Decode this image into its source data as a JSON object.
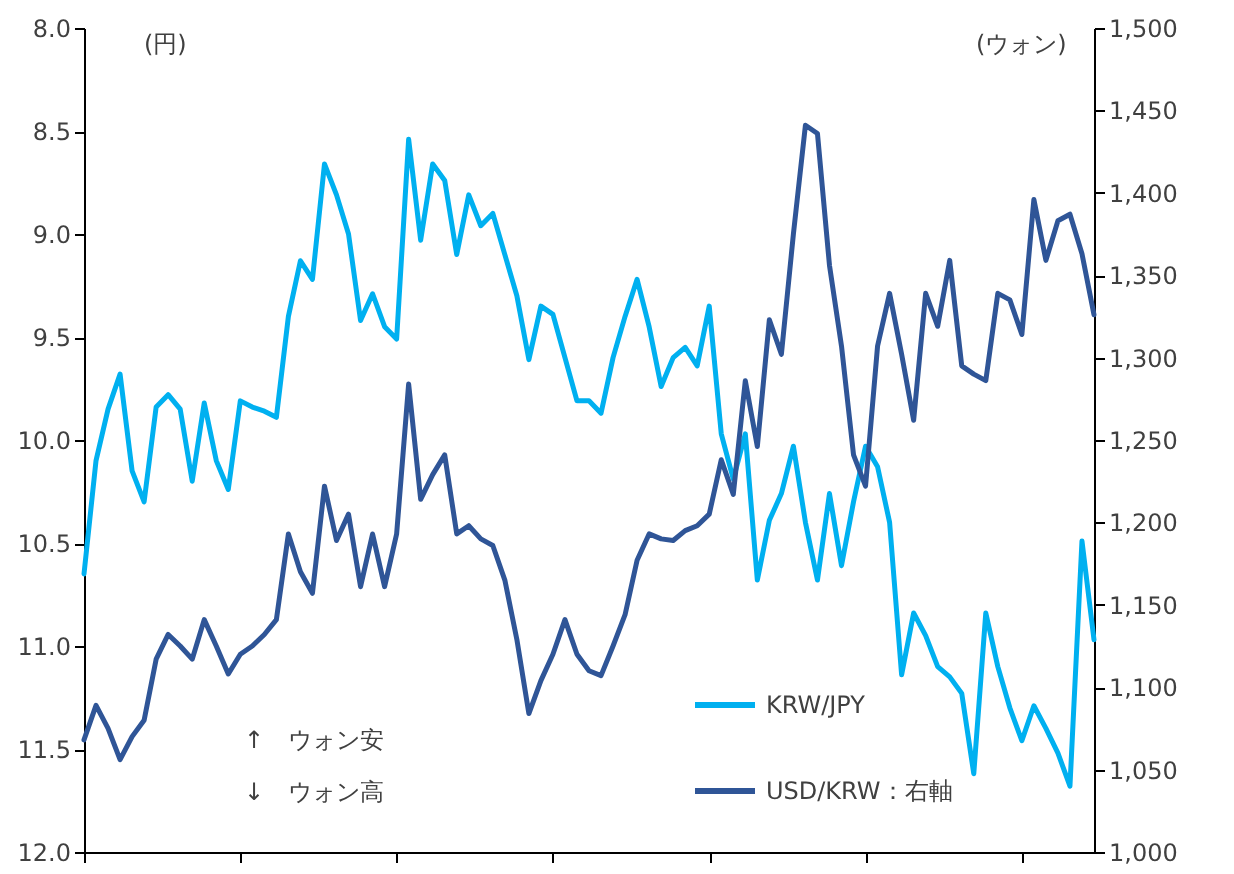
{
  "chart_data": {
    "type": "line",
    "annotations": [
      "(円)",
      "(ウォン)",
      "↑　ウォン安",
      "↓　ウォン高"
    ],
    "categories": [
      null,
      null,
      null,
      null,
      null,
      null,
      null,
      null,
      null,
      null,
      null,
      null,
      null,
      null,
      null,
      null,
      null,
      null,
      null,
      null,
      null,
      null,
      null,
      null,
      null,
      null,
      null,
      null,
      null,
      null,
      null,
      null,
      null,
      null,
      null,
      null,
      null,
      null,
      null,
      null,
      null,
      null,
      null,
      null,
      null,
      null,
      null,
      null,
      null,
      null,
      null,
      null,
      null,
      null,
      null,
      null,
      null,
      null,
      null,
      null,
      null,
      null,
      null,
      null,
      null,
      null,
      null,
      null,
      null,
      null,
      null,
      null,
      null,
      null,
      null,
      null,
      null,
      null,
      null,
      null,
      null,
      null,
      null,
      null,
      null
    ],
    "series": [
      {
        "name": "KRW/JPY",
        "color": "#00b0f0",
        "values": [
          10.65,
          10.1,
          9.85,
          9.68,
          10.15,
          10.3,
          9.84,
          9.78,
          9.85,
          10.2,
          9.82,
          10.1,
          10.24,
          9.81,
          9.84,
          9.86,
          9.89,
          9.4,
          9.13,
          9.22,
          8.66,
          8.81,
          9.0,
          9.42,
          9.29,
          9.45,
          9.51,
          8.54,
          9.03,
          8.66,
          8.74,
          9.1,
          8.81,
          8.96,
          8.9,
          9.1,
          9.3,
          9.61,
          9.35,
          9.39,
          9.6,
          9.81,
          9.81,
          9.87,
          9.6,
          9.4,
          9.22,
          9.45,
          9.74,
          9.6,
          9.55,
          9.64,
          9.35,
          9.97,
          10.19,
          9.97,
          10.68,
          10.39,
          10.26,
          10.03,
          10.4,
          10.68,
          10.26,
          10.61,
          10.3,
          10.03,
          10.13,
          10.4,
          11.14,
          10.84,
          10.95,
          11.1,
          11.15,
          11.23,
          11.62,
          10.84,
          11.1,
          11.3,
          11.46,
          11.29,
          11.4,
          11.52,
          11.68,
          10.49,
          10.97
        ]
      },
      {
        "name": "USD/KRW：右軸",
        "color": "#2f5597",
        "axis": "y2",
        "values": [
          1068,
          1089,
          1075,
          1056,
          1070,
          1080,
          1117,
          1132,
          1125,
          1117,
          1141,
          1125,
          1108,
          1120,
          1125,
          1132,
          1141,
          1193,
          1170,
          1157,
          1222,
          1189,
          1205,
          1161,
          1193,
          1161,
          1193,
          1284,
          1214,
          1229,
          1241,
          1193,
          1198,
          1190,
          1186,
          1165,
          1129,
          1084,
          1104,
          1120,
          1141,
          1120,
          1110,
          1107,
          1125,
          1144,
          1177,
          1193,
          1190,
          1189,
          1195,
          1198,
          1205,
          1238,
          1217,
          1286,
          1246,
          1323,
          1302,
          1375,
          1441,
          1436,
          1356,
          1307,
          1241,
          1222,
          1307,
          1339,
          1302,
          1262,
          1339,
          1319,
          1359,
          1295,
          1290,
          1286,
          1339,
          1335,
          1314,
          1396,
          1359,
          1383,
          1387,
          1363,
          1326
        ]
      }
    ],
    "ylim": [
      12,
      8
    ],
    "yticks": [
      {
        "value": 8,
        "label": "8.0"
      },
      {
        "value": 8.5,
        "label": "8.5"
      },
      {
        "value": 9,
        "label": "9.0"
      },
      {
        "value": 9.5,
        "label": "9.5"
      },
      {
        "value": 10,
        "label": "10.0"
      },
      {
        "value": 10.5,
        "label": "10.5"
      },
      {
        "value": 11,
        "label": "11.0"
      },
      {
        "value": 11.5,
        "label": "11.5"
      },
      {
        "value": 12,
        "label": "12.0"
      }
    ],
    "y2lim": [
      1000,
      1500
    ],
    "y2ticks": [
      {
        "value": 1000,
        "label": "1,000"
      },
      {
        "value": 1050,
        "label": "1,050"
      },
      {
        "value": 1100,
        "label": "1,100"
      },
      {
        "value": 1150,
        "label": "1,150"
      },
      {
        "value": 1200,
        "label": "1,200"
      },
      {
        "value": 1250,
        "label": "1,250"
      },
      {
        "value": 1300,
        "label": "1,300"
      },
      {
        "value": 1350,
        "label": "1,350"
      },
      {
        "value": 1400,
        "label": "1,400"
      },
      {
        "value": 1450,
        "label": "1,450"
      },
      {
        "value": 1500,
        "label": "1,500"
      }
    ],
    "grid": false,
    "legend": "bottom right",
    "line_style": "solid"
  }
}
